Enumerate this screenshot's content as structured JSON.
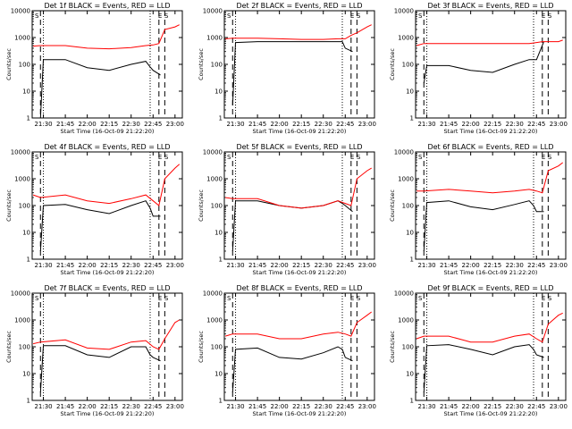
{
  "figure": {
    "colors": {
      "events": "#000000",
      "lld": "#ff0000",
      "background": "#ffffff",
      "frame": "#000000"
    }
  },
  "chart_data": [
    {
      "type": "line",
      "title": "Det 1f BLACK = Events, RED = LLD",
      "xlabel": "Start Time (16-Oct-09 21:22:20)",
      "ylabel": "Counts/sec",
      "yscale": "log",
      "ylim": [
        1,
        10000
      ],
      "xlim": [
        "21:22:20",
        "23:05:00"
      ],
      "x_ticks": [
        "21:30",
        "21:45",
        "22:00",
        "22:15",
        "22:30",
        "22:45",
        "23:00"
      ],
      "y_ticks": [
        "1",
        "10",
        "100",
        "1000",
        "10000"
      ],
      "markers": [
        "S",
        "E",
        "S"
      ],
      "dashed_lines": [
        "21:28",
        "22:49",
        "22:53"
      ],
      "dotted_lines": [
        "21:30",
        "22:43"
      ],
      "series": [
        {
          "name": "Events",
          "color": "#000000",
          "x": [
            "21:28",
            "21:30",
            "21:45",
            "22:00",
            "22:15",
            "22:30",
            "22:40",
            "22:43",
            "22:45",
            "22:50"
          ],
          "values": [
            1,
            150,
            150,
            75,
            60,
            100,
            130,
            80,
            60,
            40
          ]
        },
        {
          "name": "LLD",
          "color": "#ff0000",
          "x": [
            "21:23",
            "21:28",
            "21:45",
            "22:00",
            "22:15",
            "22:30",
            "22:40",
            "22:45",
            "22:49",
            "22:53",
            "23:00",
            "23:03"
          ],
          "values": [
            480,
            500,
            500,
            400,
            380,
            420,
            500,
            530,
            600,
            2000,
            2500,
            3000
          ]
        }
      ]
    },
    {
      "type": "line",
      "title": "Det 2f BLACK = Events, RED = LLD",
      "xlabel": "Start Time (16-Oct-09 21:22:20)",
      "ylabel": "Counts/sec",
      "yscale": "log",
      "ylim": [
        1,
        10000
      ],
      "xlim": [
        "21:22:20",
        "23:05:00"
      ],
      "x_ticks": [
        "21:30",
        "21:45",
        "22:00",
        "22:15",
        "22:30",
        "22:45",
        "23:00"
      ],
      "y_ticks": [
        "1",
        "10",
        "100",
        "1000",
        "10000"
      ],
      "markers": [
        "S",
        "E",
        "S"
      ],
      "dashed_lines": [
        "21:28",
        "22:49",
        "22:53"
      ],
      "dotted_lines": [
        "21:30",
        "22:43"
      ],
      "series": [
        {
          "name": "Events",
          "color": "#000000",
          "x": [
            "21:28",
            "21:30",
            "21:45",
            "22:00",
            "22:15",
            "22:30",
            "22:40",
            "22:43",
            "22:45",
            "22:50"
          ],
          "values": [
            3,
            650,
            700,
            700,
            700,
            700,
            700,
            700,
            400,
            300
          ]
        },
        {
          "name": "LLD",
          "color": "#ff0000",
          "x": [
            "21:23",
            "21:28",
            "21:45",
            "22:00",
            "22:15",
            "22:30",
            "22:40",
            "22:45",
            "22:49",
            "22:53",
            "23:00",
            "23:03"
          ],
          "values": [
            900,
            950,
            950,
            900,
            850,
            850,
            900,
            900,
            1200,
            1500,
            2500,
            3000
          ]
        }
      ]
    },
    {
      "type": "line",
      "title": "Det 3f BLACK = Events, RED = LLD",
      "xlabel": "Start Time (16-Oct-09 21:22:20)",
      "ylabel": "Counts/sec",
      "yscale": "log",
      "ylim": [
        1,
        10000
      ],
      "xlim": [
        "21:22:20",
        "23:05:00"
      ],
      "x_ticks": [
        "21:30",
        "21:45",
        "22:00",
        "22:15",
        "22:30",
        "22:45",
        "23:00"
      ],
      "y_ticks": [
        "1",
        "10",
        "100",
        "1000",
        "10000"
      ],
      "markers": [
        "S",
        "E",
        "S"
      ],
      "dashed_lines": [
        "21:28",
        "22:49",
        "22:53"
      ],
      "dotted_lines": [
        "21:30",
        "22:43"
      ],
      "series": [
        {
          "name": "Events",
          "color": "#000000",
          "x": [
            "21:28",
            "21:30",
            "21:45",
            "22:00",
            "22:15",
            "22:30",
            "22:40",
            "22:43",
            "22:45",
            "22:50"
          ],
          "values": [
            20,
            90,
            90,
            60,
            50,
            100,
            150,
            150,
            150,
            700
          ]
        },
        {
          "name": "LLD",
          "color": "#ff0000",
          "x": [
            "21:23",
            "21:28",
            "21:45",
            "22:00",
            "22:15",
            "22:30",
            "22:40",
            "22:45",
            "22:49",
            "22:53",
            "23:00",
            "23:03"
          ],
          "values": [
            500,
            600,
            600,
            600,
            600,
            600,
            600,
            650,
            700,
            700,
            700,
            800
          ]
        }
      ]
    },
    {
      "type": "line",
      "title": "Det 4f BLACK = Events, RED = LLD",
      "xlabel": "Start Time (16-Oct-09 21:22:20)",
      "ylabel": "Counts/sec",
      "yscale": "log",
      "ylim": [
        1,
        10000
      ],
      "xlim": [
        "21:22:20",
        "23:05:00"
      ],
      "x_ticks": [
        "21:30",
        "21:45",
        "22:00",
        "22:15",
        "22:30",
        "22:45",
        "23:00"
      ],
      "y_ticks": [
        "1",
        "10",
        "100",
        "1000",
        "10000"
      ],
      "markers": [
        "S",
        "E",
        "S"
      ],
      "dashed_lines": [
        "21:28",
        "22:49",
        "22:53"
      ],
      "dotted_lines": [
        "21:30",
        "22:43"
      ],
      "series": [
        {
          "name": "Events",
          "color": "#000000",
          "x": [
            "21:28",
            "21:30",
            "21:45",
            "22:00",
            "22:15",
            "22:30",
            "22:40",
            "22:43",
            "22:45",
            "22:50"
          ],
          "values": [
            2,
            100,
            110,
            70,
            50,
            100,
            150,
            80,
            40,
            40
          ]
        },
        {
          "name": "LLD",
          "color": "#ff0000",
          "x": [
            "21:23",
            "21:28",
            "21:45",
            "22:00",
            "22:15",
            "22:30",
            "22:40",
            "22:45",
            "22:49",
            "22:53",
            "23:00",
            "23:03"
          ],
          "values": [
            250,
            200,
            250,
            150,
            120,
            180,
            250,
            150,
            100,
            1000,
            2500,
            3500
          ]
        }
      ]
    },
    {
      "type": "line",
      "title": "Det 5f BLACK = Events, RED = LLD",
      "xlabel": "Start Time (16-Oct-09 21:22:20)",
      "ylabel": "Counts/sec",
      "yscale": "log",
      "ylim": [
        1,
        10000
      ],
      "xlim": [
        "21:22:20",
        "23:05:00"
      ],
      "x_ticks": [
        "21:30",
        "21:45",
        "22:00",
        "22:15",
        "22:30",
        "22:45",
        "23:00"
      ],
      "y_ticks": [
        "1",
        "10",
        "100",
        "1000",
        "10000"
      ],
      "markers": [
        "S",
        "E",
        "S"
      ],
      "dashed_lines": [
        "21:28",
        "22:49",
        "22:53"
      ],
      "dotted_lines": [
        "21:30",
        "22:43"
      ],
      "series": [
        {
          "name": "Events",
          "color": "#000000",
          "x": [
            "21:28",
            "21:30",
            "21:45",
            "22:00",
            "22:15",
            "22:30",
            "22:40",
            "22:43",
            "22:45",
            "22:50"
          ],
          "values": [
            2,
            150,
            150,
            100,
            80,
            100,
            150,
            120,
            100,
            60
          ]
        },
        {
          "name": "LLD",
          "color": "#ff0000",
          "x": [
            "21:23",
            "21:28",
            "21:45",
            "22:00",
            "22:15",
            "22:30",
            "22:40",
            "22:45",
            "22:49",
            "22:53",
            "23:00",
            "23:03"
          ],
          "values": [
            200,
            180,
            180,
            100,
            80,
            100,
            150,
            120,
            100,
            1000,
            2000,
            2500
          ]
        }
      ]
    },
    {
      "type": "line",
      "title": "Det 6f BLACK = Events, RED = LLD",
      "xlabel": "Start Time (16-Oct-09 21:22:20)",
      "ylabel": "Counts/sec",
      "yscale": "log",
      "ylim": [
        1,
        10000
      ],
      "xlim": [
        "21:22:20",
        "23:05:00"
      ],
      "x_ticks": [
        "21:30",
        "21:45",
        "22:00",
        "22:15",
        "22:30",
        "22:45",
        "23:00"
      ],
      "y_ticks": [
        "1",
        "10",
        "100",
        "1000",
        "10000"
      ],
      "markers": [
        "S",
        "E",
        "S"
      ],
      "dashed_lines": [
        "21:28",
        "22:49",
        "22:53"
      ],
      "dotted_lines": [
        "21:30",
        "22:43"
      ],
      "series": [
        {
          "name": "Events",
          "color": "#000000",
          "x": [
            "21:28",
            "21:30",
            "21:45",
            "22:00",
            "22:15",
            "22:30",
            "22:40",
            "22:43",
            "22:45",
            "22:50"
          ],
          "values": [
            2,
            130,
            150,
            90,
            70,
            110,
            150,
            100,
            60,
            60
          ]
        },
        {
          "name": "LLD",
          "color": "#ff0000",
          "x": [
            "21:23",
            "21:28",
            "21:45",
            "22:00",
            "22:15",
            "22:30",
            "22:40",
            "22:45",
            "22:49",
            "22:53",
            "23:00",
            "23:03"
          ],
          "values": [
            350,
            350,
            400,
            350,
            300,
            350,
            400,
            350,
            300,
            2000,
            3000,
            4000
          ]
        }
      ]
    },
    {
      "type": "line",
      "title": "Det 7f BLACK = Events, RED = LLD",
      "xlabel": "Start Time (16-Oct-09 21:22:20)",
      "ylabel": "Counts/sec",
      "yscale": "log",
      "ylim": [
        1,
        10000
      ],
      "xlim": [
        "21:22:20",
        "23:05:00"
      ],
      "x_ticks": [
        "21:30",
        "21:45",
        "22:00",
        "22:15",
        "22:30",
        "22:45",
        "23:00"
      ],
      "y_ticks": [
        "1",
        "10",
        "100",
        "1000",
        "10000"
      ],
      "markers": [
        "S",
        "E",
        "S"
      ],
      "dashed_lines": [
        "21:28",
        "22:49",
        "22:53"
      ],
      "dotted_lines": [
        "21:30",
        "22:43"
      ],
      "series": [
        {
          "name": "Events",
          "color": "#000000",
          "x": [
            "21:28",
            "21:30",
            "21:45",
            "22:00",
            "22:15",
            "22:30",
            "22:40",
            "22:43",
            "22:45",
            "22:50"
          ],
          "values": [
            2,
            110,
            110,
            50,
            40,
            100,
            100,
            50,
            40,
            30
          ]
        },
        {
          "name": "LLD",
          "color": "#ff0000",
          "x": [
            "21:23",
            "21:28",
            "21:45",
            "22:00",
            "22:15",
            "22:30",
            "22:40",
            "22:45",
            "22:49",
            "22:53",
            "23:00",
            "23:03"
          ],
          "values": [
            130,
            150,
            180,
            90,
            80,
            150,
            170,
            100,
            80,
            200,
            800,
            1000
          ]
        }
      ]
    },
    {
      "type": "line",
      "title": "Det 8f BLACK = Events, RED = LLD",
      "xlabel": "Start Time (16-Oct-09 21:22:20)",
      "ylabel": "Counts/sec",
      "yscale": "log",
      "ylim": [
        1,
        10000
      ],
      "xlim": [
        "21:22:20",
        "23:05:00"
      ],
      "x_ticks": [
        "21:30",
        "21:45",
        "22:00",
        "22:15",
        "22:30",
        "22:45",
        "23:00"
      ],
      "y_ticks": [
        "1",
        "10",
        "100",
        "1000",
        "10000"
      ],
      "markers": [
        "S",
        "E",
        "S"
      ],
      "dashed_lines": [
        "21:28",
        "22:49",
        "22:53"
      ],
      "dotted_lines": [
        "21:30",
        "22:43"
      ],
      "series": [
        {
          "name": "Events",
          "color": "#000000",
          "x": [
            "21:28",
            "21:30",
            "21:45",
            "22:00",
            "22:15",
            "22:30",
            "22:40",
            "22:43",
            "22:45",
            "22:50"
          ],
          "values": [
            2,
            80,
            90,
            40,
            35,
            60,
            100,
            80,
            40,
            30
          ]
        },
        {
          "name": "LLD",
          "color": "#ff0000",
          "x": [
            "21:23",
            "21:28",
            "21:45",
            "22:00",
            "22:15",
            "22:30",
            "22:40",
            "22:45",
            "22:49",
            "22:53",
            "23:00",
            "23:03"
          ],
          "values": [
            250,
            300,
            300,
            200,
            200,
            300,
            350,
            300,
            250,
            800,
            1500,
            2000
          ]
        }
      ]
    },
    {
      "type": "line",
      "title": "Det 9f BLACK = Events, RED = LLD",
      "xlabel": "Start Time (16-Oct-09 21:22:20)",
      "ylabel": "Counts/sec",
      "yscale": "log",
      "ylim": [
        1,
        10000
      ],
      "xlim": [
        "21:22:20",
        "23:05:00"
      ],
      "x_ticks": [
        "21:30",
        "21:45",
        "22:00",
        "22:15",
        "22:30",
        "22:45",
        "23:00"
      ],
      "y_ticks": [
        "1",
        "10",
        "100",
        "1000",
        "10000"
      ],
      "markers": [
        "S",
        "E",
        "S"
      ],
      "dashed_lines": [
        "21:28",
        "22:49",
        "22:53"
      ],
      "dotted_lines": [
        "21:30",
        "22:43"
      ],
      "series": [
        {
          "name": "Events",
          "color": "#000000",
          "x": [
            "21:28",
            "21:30",
            "21:45",
            "22:00",
            "22:15",
            "22:30",
            "22:40",
            "22:43",
            "22:45",
            "22:50"
          ],
          "values": [
            2,
            110,
            120,
            80,
            50,
            100,
            120,
            80,
            50,
            40
          ]
        },
        {
          "name": "LLD",
          "color": "#ff0000",
          "x": [
            "21:23",
            "21:28",
            "21:45",
            "22:00",
            "22:15",
            "22:30",
            "22:40",
            "22:45",
            "22:49",
            "22:53",
            "23:00",
            "23:03"
          ],
          "values": [
            200,
            250,
            250,
            150,
            150,
            250,
            300,
            200,
            150,
            700,
            1500,
            1800
          ]
        }
      ]
    }
  ]
}
